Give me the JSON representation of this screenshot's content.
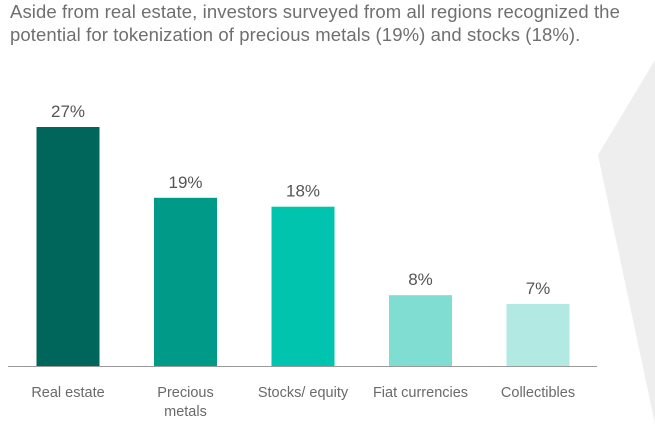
{
  "headline": "Aside from real estate, investors surveyed from all regions recognized the potential for tokenization of precious metals (19%) and stocks (18%).",
  "chart_data": {
    "type": "bar",
    "categories": [
      [
        "Real estate"
      ],
      [
        "Precious",
        "metals"
      ],
      [
        "Stocks/ equity"
      ],
      [
        "Fiat currencies"
      ],
      [
        "Collectibles"
      ]
    ],
    "values": [
      27,
      19,
      18,
      8,
      7
    ],
    "value_labels": [
      "27%",
      "19%",
      "18%",
      "8%",
      "7%"
    ],
    "unit": "%",
    "ylim": [
      0,
      27
    ],
    "grid": false,
    "legend": "none",
    "colors": [
      "#00655a",
      "#009b88",
      "#00c4ae",
      "#7fddd2",
      "#b2e9e3"
    ],
    "background_shape_color": "#eeeeee",
    "baseline_color": "#9a9a9a"
  }
}
